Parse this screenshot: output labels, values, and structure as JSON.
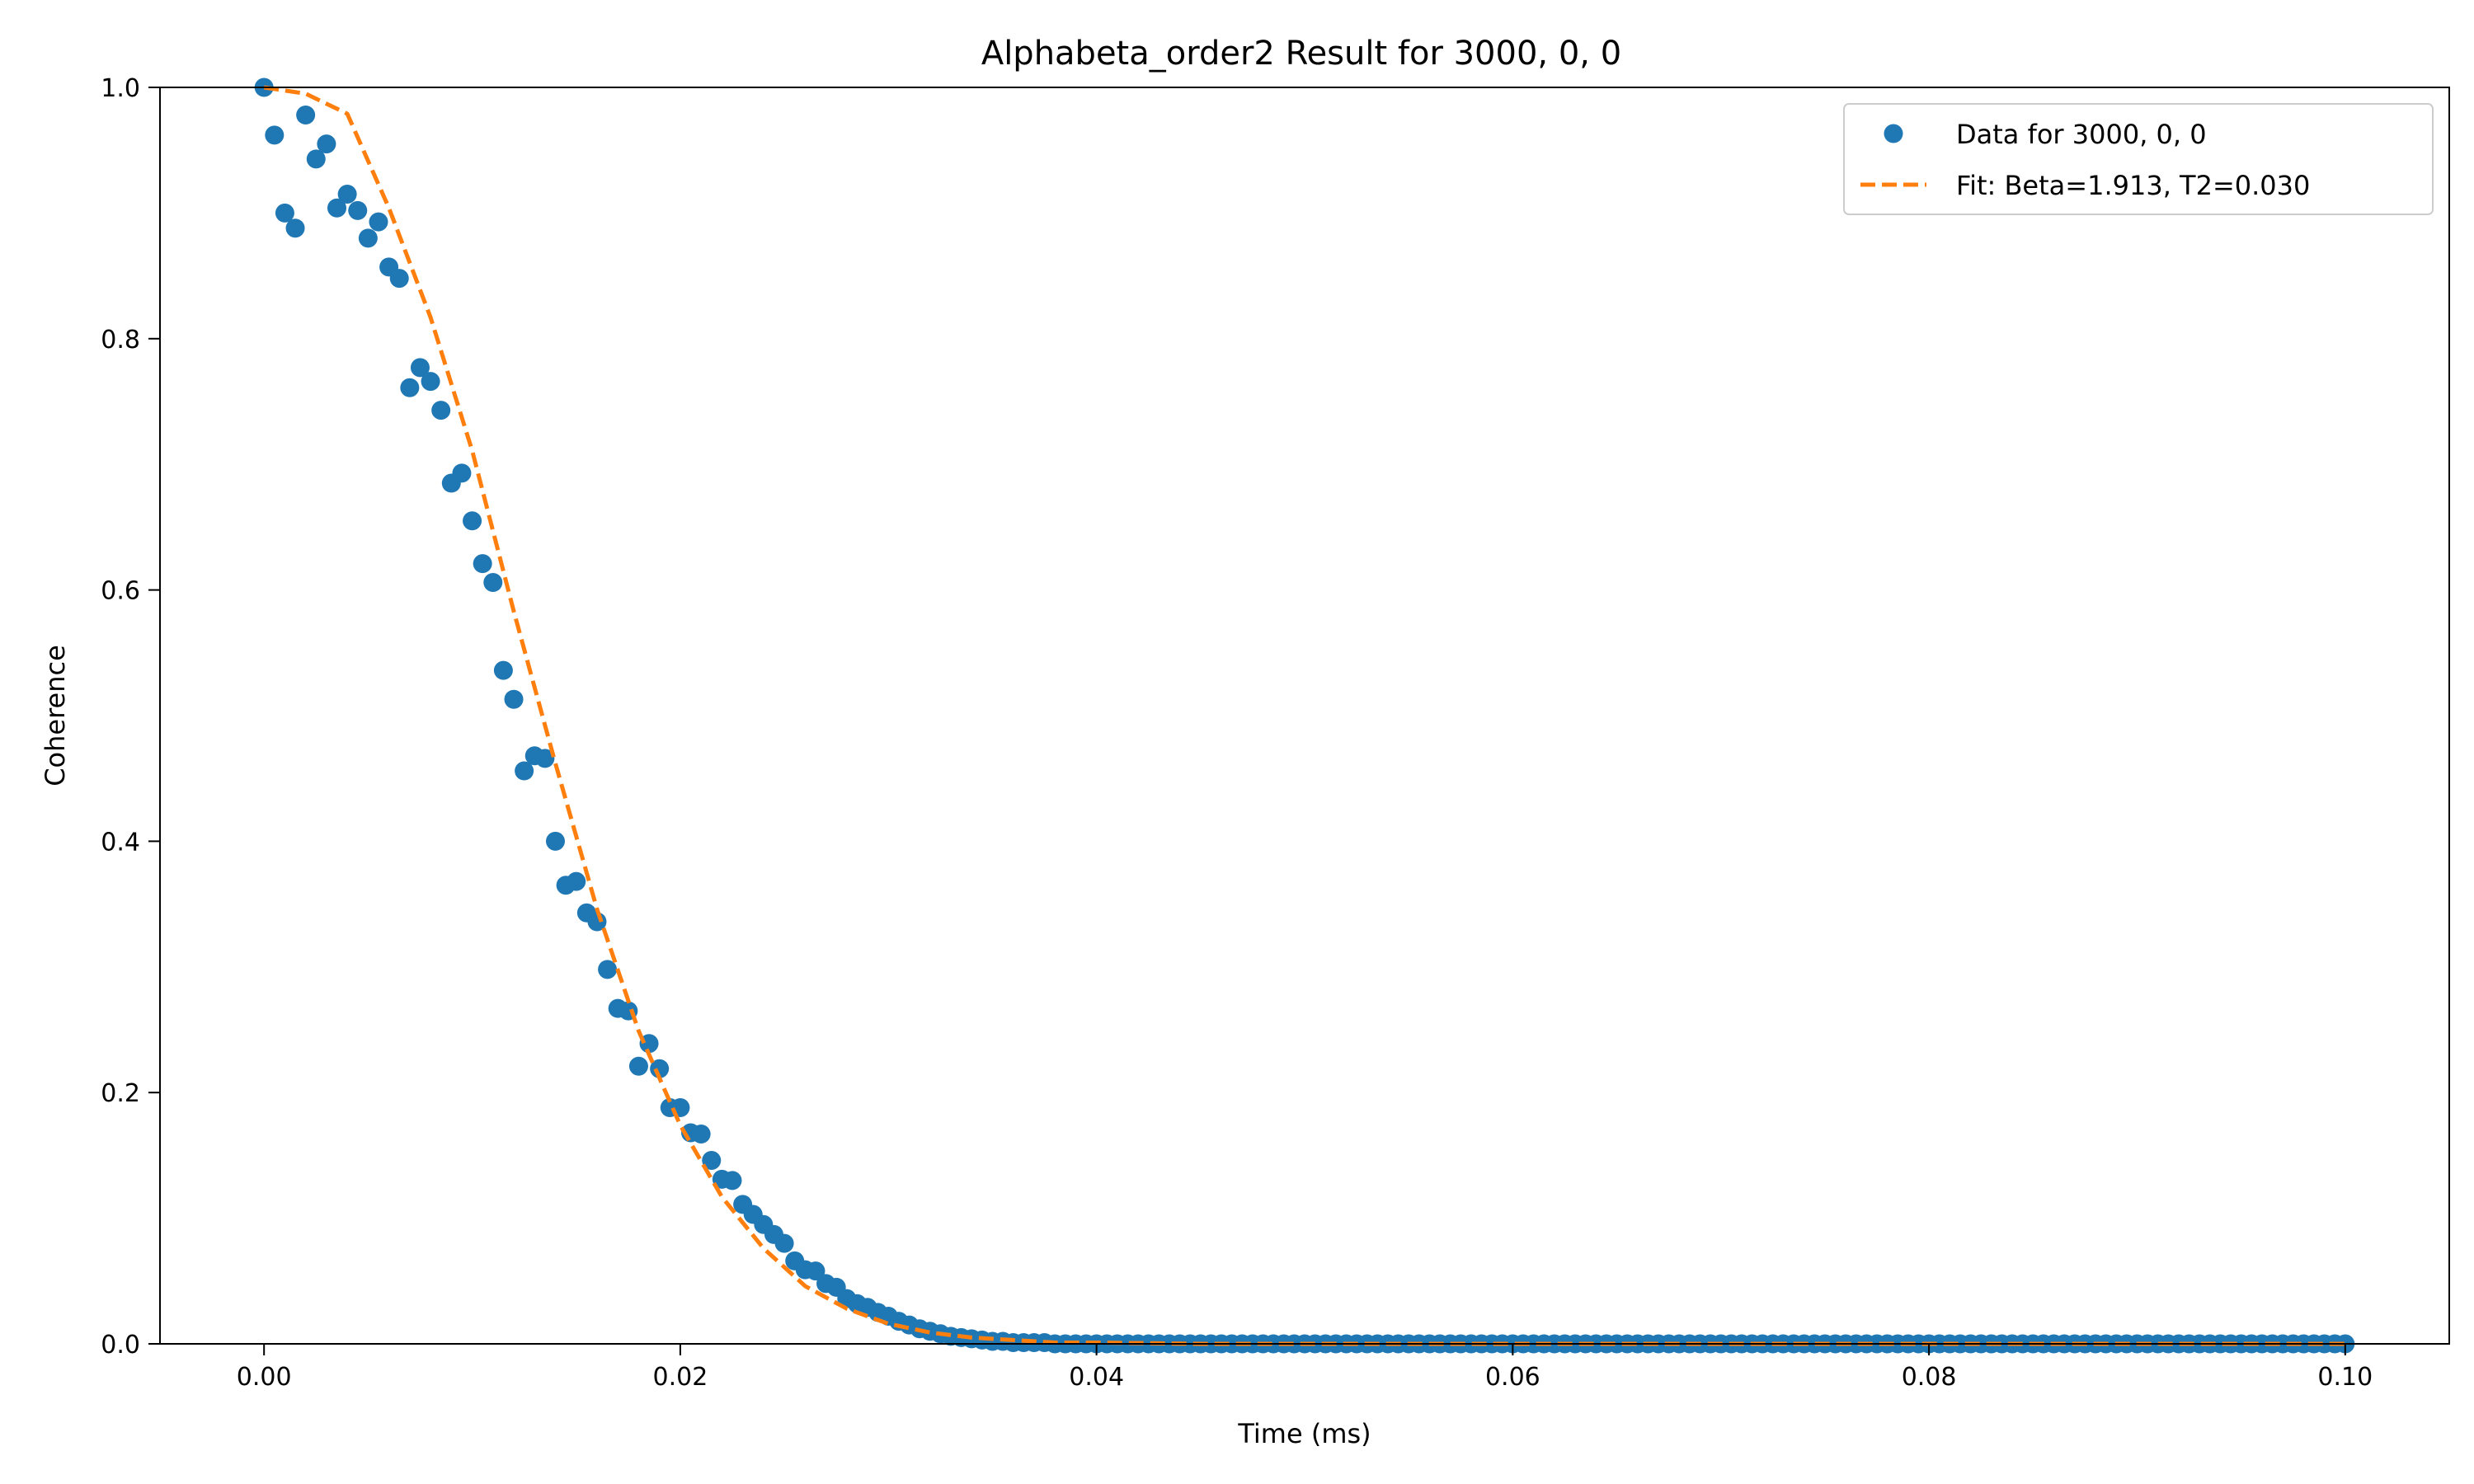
{
  "chart_data": {
    "type": "scatter",
    "title": "Alphabeta_order2 Result for 3000, 0, 0",
    "xlabel": "Time (ms)",
    "ylabel": "Coherence",
    "xlim": [
      -0.005,
      0.105
    ],
    "ylim": [
      0.0,
      1.0
    ],
    "xticks": [
      0.0,
      0.02,
      0.04,
      0.06,
      0.08,
      0.1
    ],
    "xtick_labels": [
      "0.00",
      "0.02",
      "0.04",
      "0.06",
      "0.08",
      "0.10"
    ],
    "yticks": [
      0.0,
      0.2,
      0.4,
      0.6,
      0.8,
      1.0
    ],
    "ytick_labels": [
      "0.0",
      "0.2",
      "0.4",
      "0.6",
      "0.8",
      "1.0"
    ],
    "grid": false,
    "legend_position": "top-right",
    "series": [
      {
        "name": "Data for 3000, 0, 0",
        "kind": "scatter",
        "color": "#1f77b4",
        "x": [
          0.0,
          0.0005,
          0.001,
          0.0015,
          0.002,
          0.0025,
          0.003,
          0.0035,
          0.004,
          0.0045,
          0.005,
          0.0055,
          0.006,
          0.0065,
          0.007,
          0.0075,
          0.008,
          0.0085,
          0.009,
          0.0095,
          0.01,
          0.0105,
          0.011,
          0.0115,
          0.012,
          0.0125,
          0.013,
          0.0135,
          0.014,
          0.0145,
          0.015,
          0.0155,
          0.016,
          0.0165,
          0.017,
          0.0175,
          0.018,
          0.0185,
          0.019,
          0.0195,
          0.02,
          0.0205,
          0.021,
          0.0215,
          0.022,
          0.0225,
          0.023,
          0.0235,
          0.024,
          0.0245,
          0.025,
          0.0255,
          0.026,
          0.0265,
          0.027,
          0.0275,
          0.028,
          0.0285,
          0.029,
          0.0295,
          0.03,
          0.0305,
          0.031,
          0.0315,
          0.032,
          0.0325,
          0.033,
          0.0335,
          0.034,
          0.0345,
          0.035,
          0.0355,
          0.036,
          0.0365,
          0.037,
          0.0375,
          0.038
        ],
        "y": [
          1.0,
          0.962,
          0.9,
          0.888,
          0.978,
          0.943,
          0.955,
          0.904,
          0.915,
          0.902,
          0.88,
          0.893,
          0.857,
          0.848,
          0.761,
          0.777,
          0.766,
          0.743,
          0.685,
          0.693,
          0.655,
          0.621,
          0.606,
          0.536,
          0.513,
          0.456,
          0.468,
          0.466,
          0.4,
          0.365,
          0.368,
          0.343,
          0.336,
          0.298,
          0.267,
          0.265,
          0.221,
          0.239,
          0.219,
          0.188,
          0.188,
          0.168,
          0.167,
          0.146,
          0.131,
          0.13,
          0.111,
          0.103,
          0.095,
          0.087,
          0.08,
          0.066,
          0.059,
          0.058,
          0.048,
          0.045,
          0.036,
          0.032,
          0.029,
          0.025,
          0.022,
          0.018,
          0.015,
          0.012,
          0.01,
          0.008,
          0.006,
          0.005,
          0.004,
          0.003,
          0.002,
          0.002,
          0.001,
          0.001,
          0.001,
          0.001,
          0.0
        ],
        "tail": {
          "x_start": 0.0385,
          "x_end": 0.1,
          "step": 0.0005,
          "y": 0.0
        }
      },
      {
        "name": "Fit: Beta=1.913, T2=0.030",
        "kind": "line",
        "style": "dashed",
        "color": "#ff7f0e",
        "x": [
          0.0,
          0.002,
          0.004,
          0.006,
          0.008,
          0.01,
          0.012,
          0.014,
          0.016,
          0.018,
          0.02,
          0.022,
          0.024,
          0.026,
          0.028,
          0.03,
          0.032,
          0.034,
          0.036,
          0.038,
          0.04,
          0.045,
          0.05,
          0.06,
          0.07,
          0.08,
          0.09,
          0.1
        ],
        "y": [
          1.0,
          0.995,
          0.979,
          0.904,
          0.817,
          0.711,
          0.583,
          0.462,
          0.346,
          0.249,
          0.174,
          0.117,
          0.076,
          0.046,
          0.028,
          0.016,
          0.009,
          0.005,
          0.003,
          0.001,
          0.001,
          0.0,
          0.0,
          0.0,
          0.0,
          0.0,
          0.0,
          0.0
        ]
      }
    ]
  }
}
